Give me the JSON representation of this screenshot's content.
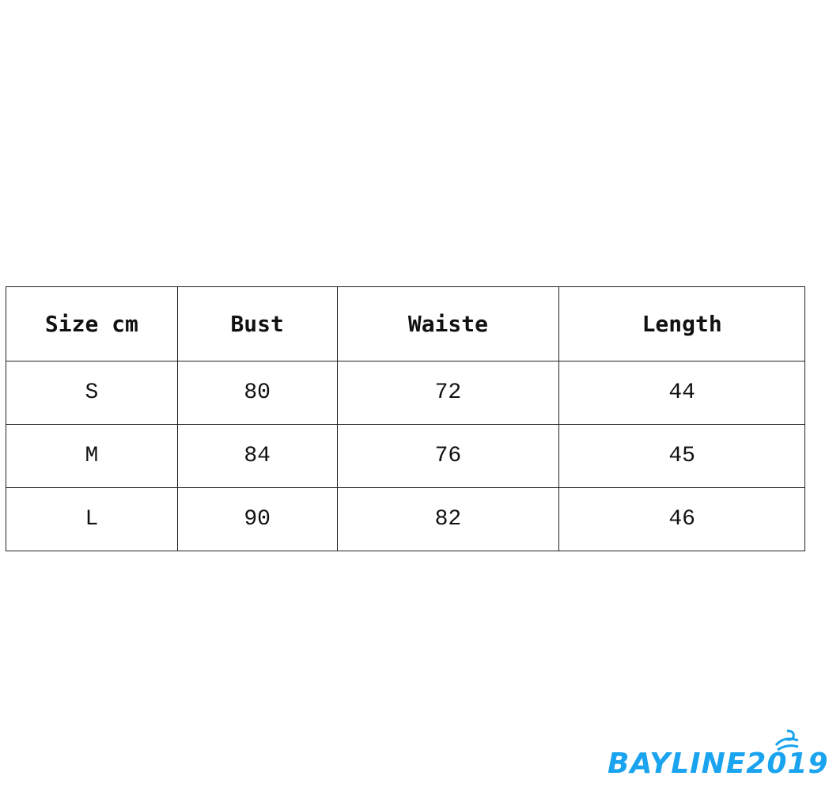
{
  "table": {
    "headers": [
      "Size cm",
      "Bust",
      "Waiste",
      "Length"
    ],
    "rows": [
      [
        "S",
        "80",
        "72",
        "44"
      ],
      [
        "M",
        "84",
        "76",
        "45"
      ],
      [
        "L",
        "90",
        "82",
        "46"
      ]
    ]
  },
  "watermark": {
    "text": "BAYLINE2019",
    "color": "#1aa3ee"
  }
}
